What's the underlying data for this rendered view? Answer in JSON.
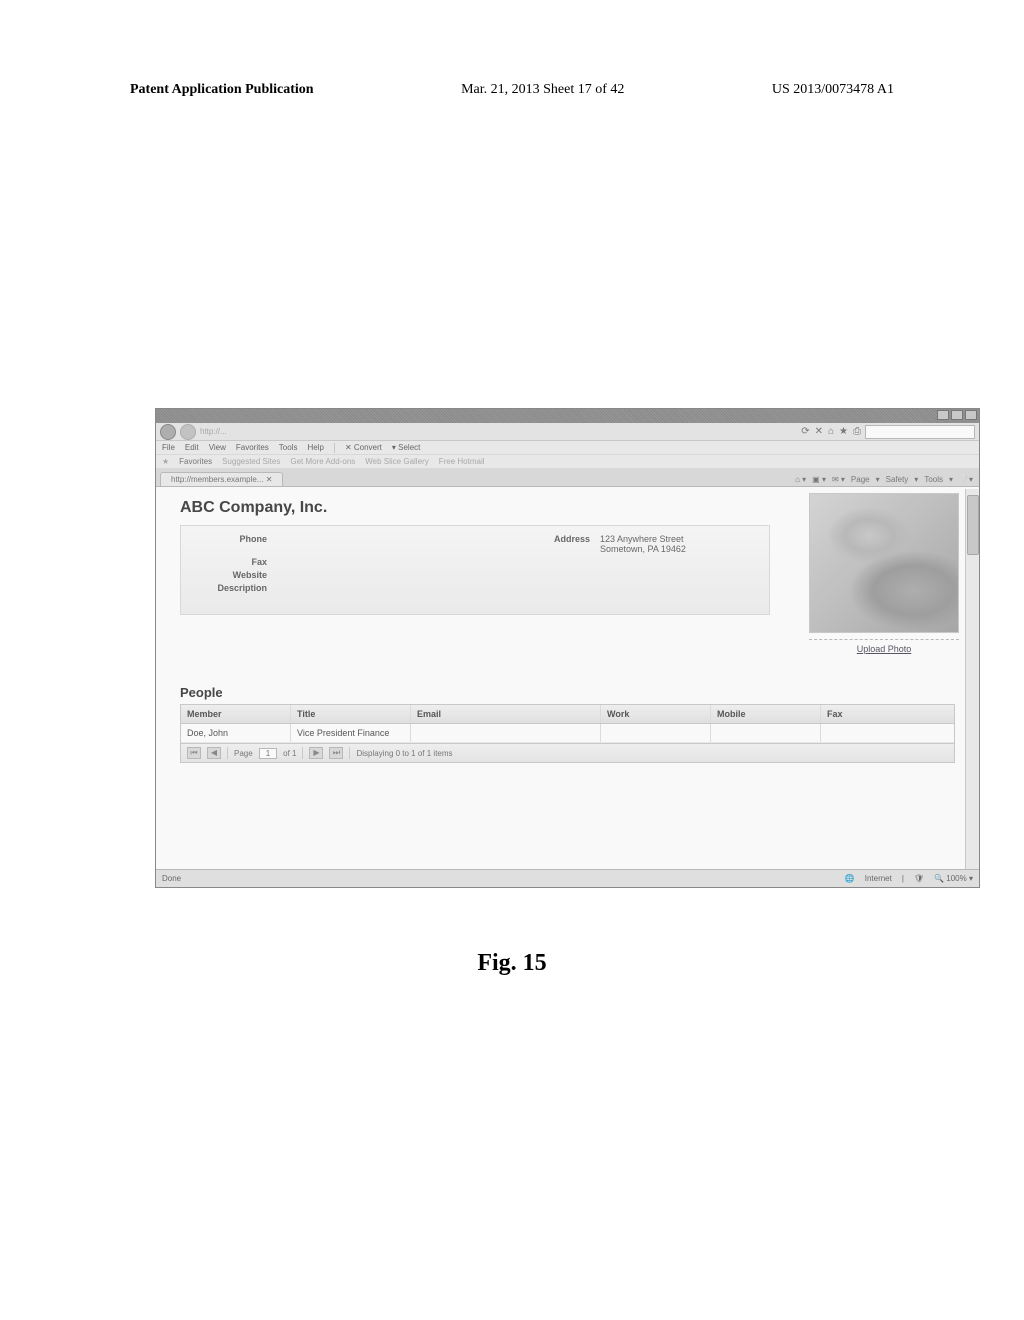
{
  "page_header": {
    "left": "Patent Application Publication",
    "mid": "Mar. 21, 2013  Sheet 17 of 42",
    "right": "US 2013/0073478 A1"
  },
  "browser": {
    "menus": [
      "File",
      "Edit",
      "View",
      "Favorites",
      "Tools",
      "Help"
    ],
    "menu_extra1": "Convert",
    "menu_extra2": "Select",
    "address_hint": "http://...",
    "fav_label": "Favorites",
    "fav_items": [
      "Suggested Sites",
      "Get More Add-ons",
      "Web Slice Gallery",
      "Free Hotmail"
    ],
    "tab_label": "http://members.example...",
    "tab_tools": [
      "Page",
      "Safety",
      "Tools"
    ],
    "status_done": "Done",
    "status_zone": "Internet",
    "status_zoom": "100%"
  },
  "company": {
    "name": "ABC Company, Inc.",
    "labels": {
      "phone": "Phone",
      "fax": "Fax",
      "website": "Website",
      "description": "Description",
      "address": "Address"
    },
    "address_line1": "123 Anywhere Street",
    "address_line2": "Sometown, PA 19462",
    "upload_photo": "Upload Photo"
  },
  "people": {
    "heading": "People",
    "columns": {
      "member": "Member",
      "title": "Title",
      "email": "Email",
      "work": "Work",
      "mobile": "Mobile",
      "fax": "Fax"
    },
    "rows": [
      {
        "member": "Doe, John",
        "title": "Vice President Finance",
        "email": "",
        "work": "",
        "mobile": "",
        "fax": ""
      }
    ],
    "pager": {
      "page_label": "Page",
      "page_num": "1",
      "page_of": "of 1",
      "summary": "Displaying 0 to 1 of 1 items"
    }
  },
  "figure_caption": "Fig. 15"
}
